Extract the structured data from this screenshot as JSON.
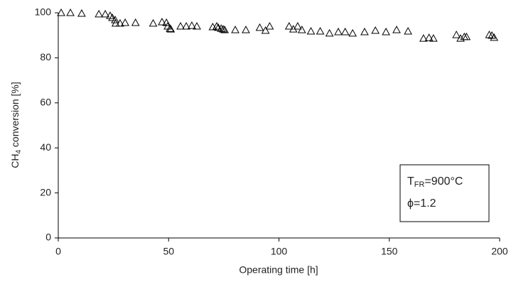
{
  "chart_data": {
    "type": "scatter",
    "xlabel": "Operating time [h]",
    "ylabel": {
      "main": "CH",
      "sub": "4",
      "rest": " conversion [%]"
    },
    "annotations": [
      {
        "main": "T",
        "sub": "FR",
        "rest": "=900°C"
      },
      {
        "main": "ϕ=1.2"
      }
    ],
    "x": [
      1.3,
      5.5,
      10.6,
      18.4,
      21.3,
      23.5,
      24.5,
      25.8,
      26,
      28,
      30.3,
      35,
      43,
      47,
      49,
      49.6,
      50.6,
      51,
      55.4,
      58,
      60.5,
      62.8,
      70,
      71.8,
      72.5,
      73.8,
      74.7,
      75.4,
      80.2,
      85,
      91.3,
      93.9,
      95.8,
      104.6,
      106.5,
      108.5,
      110.4,
      114.5,
      118.7,
      122.9,
      126.9,
      130,
      133.4,
      138.8,
      143.7,
      148.5,
      153.3,
      158.5,
      165.5,
      168,
      170,
      180.4,
      182.3,
      184,
      185,
      195.3,
      196.5,
      197.5
    ],
    "values": [
      100,
      100,
      99.7,
      99.4,
      99.4,
      98.7,
      97.8,
      96.8,
      95.3,
      95.3,
      95.6,
      95.6,
      95.3,
      95.9,
      95.6,
      94,
      93,
      92.7,
      94,
      94,
      94.3,
      94,
      93.7,
      94,
      93.4,
      93,
      92.7,
      92.4,
      92.4,
      92.4,
      93.4,
      92.1,
      94,
      94,
      92.7,
      94,
      92.4,
      91.8,
      91.8,
      90.9,
      91.5,
      91.5,
      90.9,
      91.5,
      92.1,
      91.5,
      92.4,
      91.8,
      88.6,
      88.9,
      88.6,
      90.2,
      88.6,
      89.3,
      89.3,
      90.2,
      89.9,
      89
    ],
    "color": "#000000",
    "xlim": [
      0,
      200
    ],
    "xticks": [
      0,
      50,
      100,
      150,
      200
    ],
    "ylim": [
      0,
      100
    ],
    "yticks": [
      0,
      20,
      40,
      60,
      80,
      100
    ],
    "grid": false
  }
}
